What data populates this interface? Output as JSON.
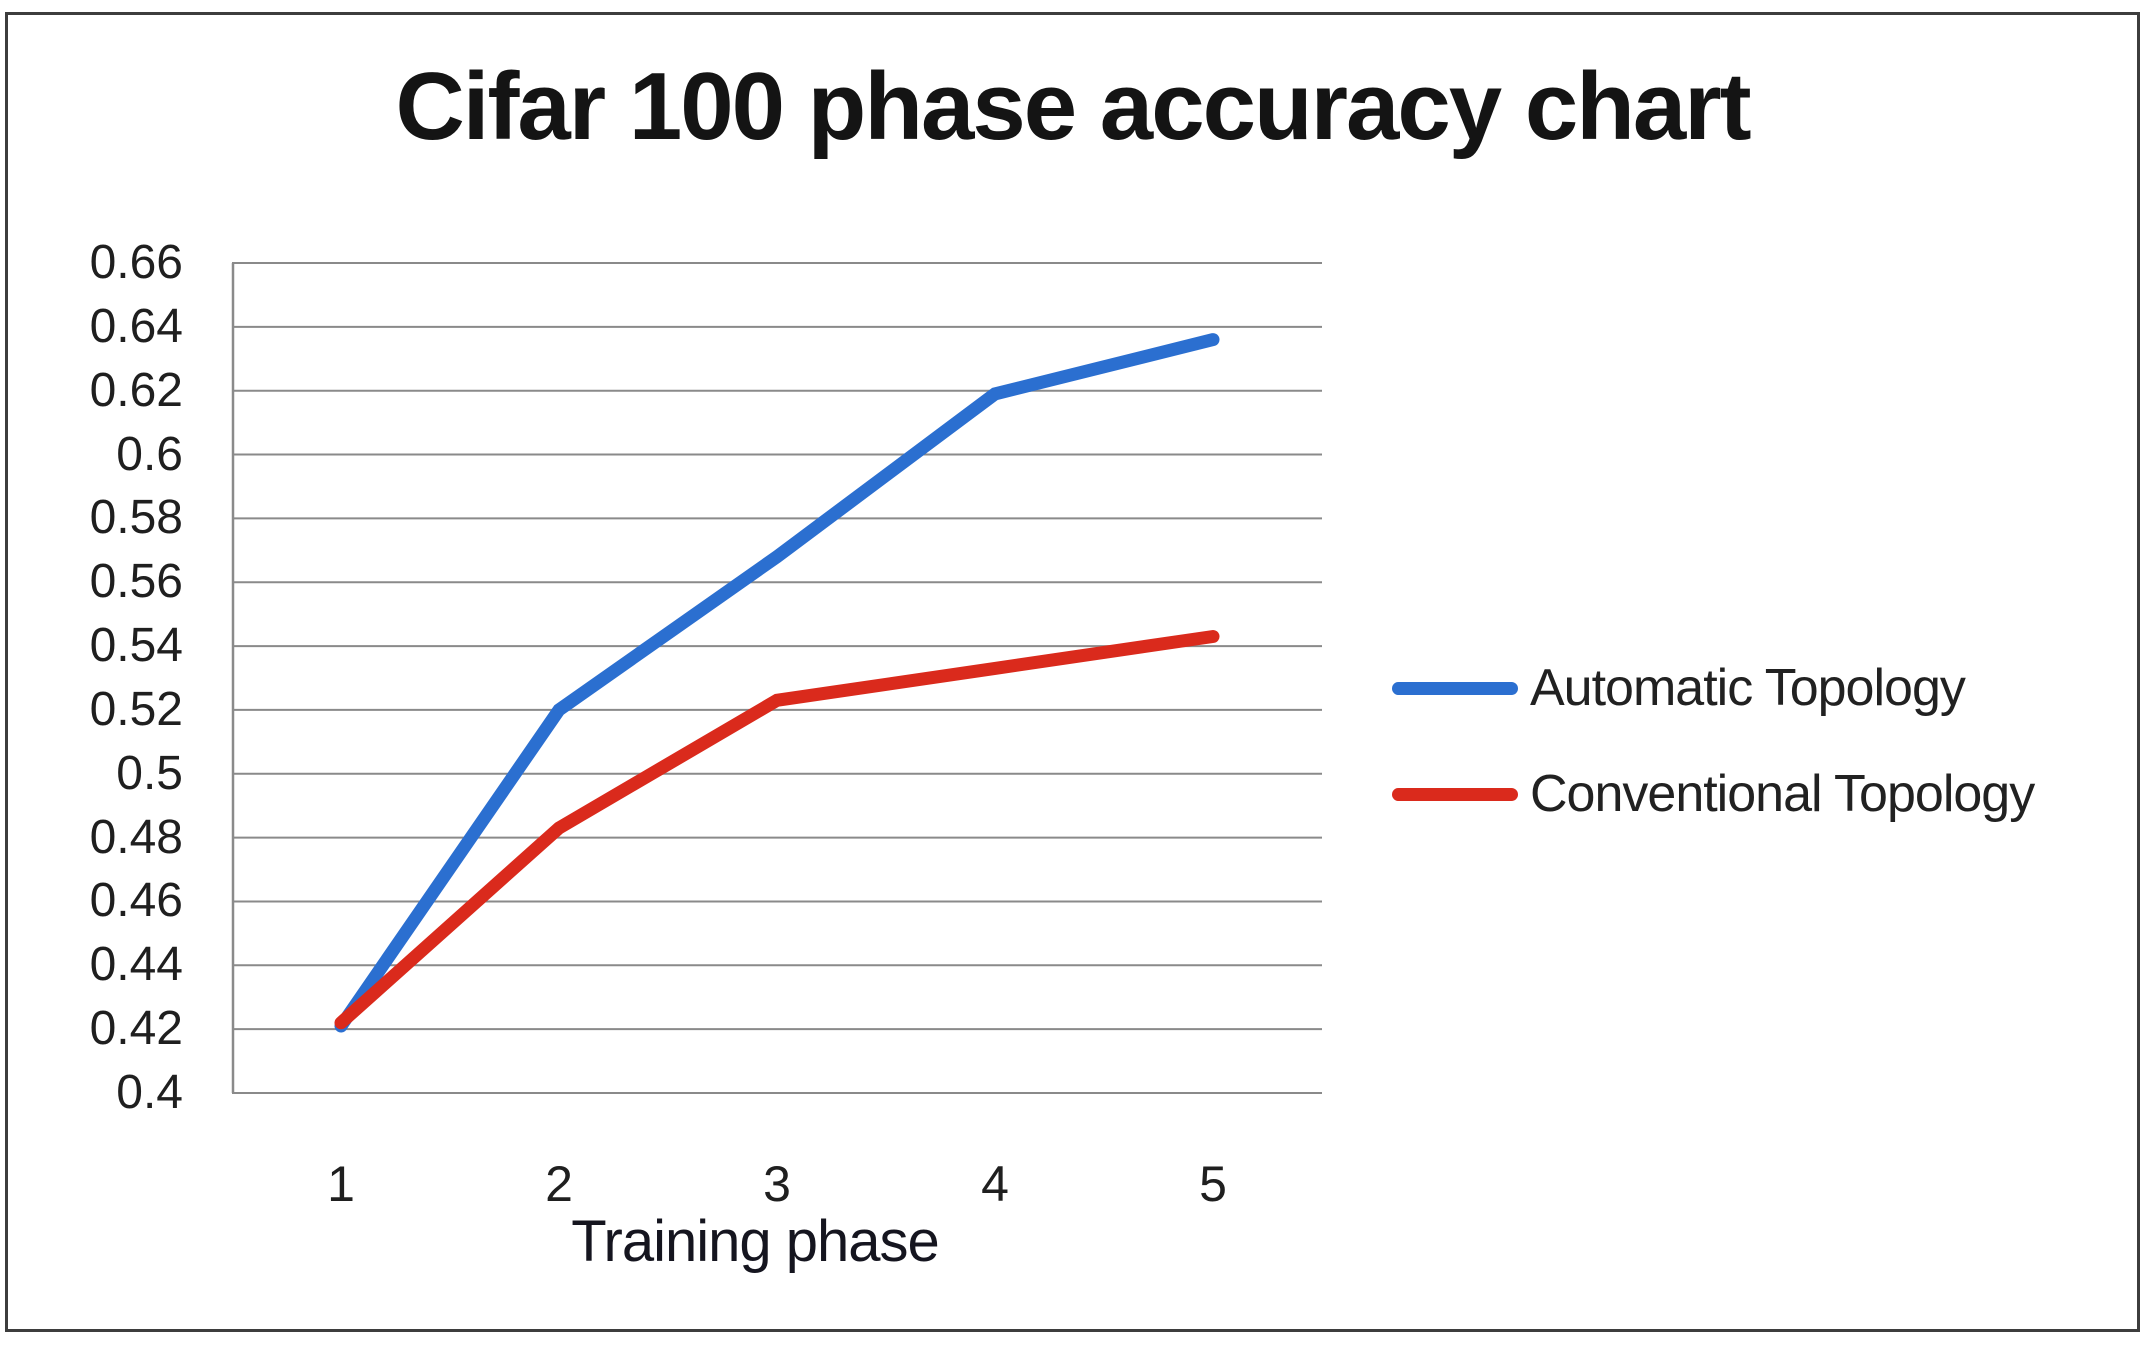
{
  "chart_data": {
    "type": "line",
    "title": "Cifar 100 phase accuracy chart",
    "xlabel": "Training phase",
    "ylabel": "",
    "categories": [
      "1",
      "2",
      "3",
      "4",
      "5"
    ],
    "series": [
      {
        "name": "Automatic Topology",
        "color": "#2b6fd0",
        "values": [
          0.421,
          0.52,
          0.568,
          0.619,
          0.636
        ]
      },
      {
        "name": "Conventional Topology",
        "color": "#da2a1c",
        "values": [
          0.422,
          0.483,
          0.523,
          0.533,
          0.543
        ]
      }
    ],
    "ylim": [
      0.4,
      0.66
    ],
    "ytick_step": 0.02,
    "ytick_labels": [
      "0.66",
      "0.64",
      "0.62",
      "0.6",
      "0.58",
      "0.56",
      "0.54",
      "0.52",
      "0.5",
      "0.48",
      "0.46",
      "0.44",
      "0.42",
      "0.4"
    ],
    "grid": "horizontal",
    "gridline_color": "#8a8a8a",
    "legend_position": "right",
    "line_width": 13
  }
}
